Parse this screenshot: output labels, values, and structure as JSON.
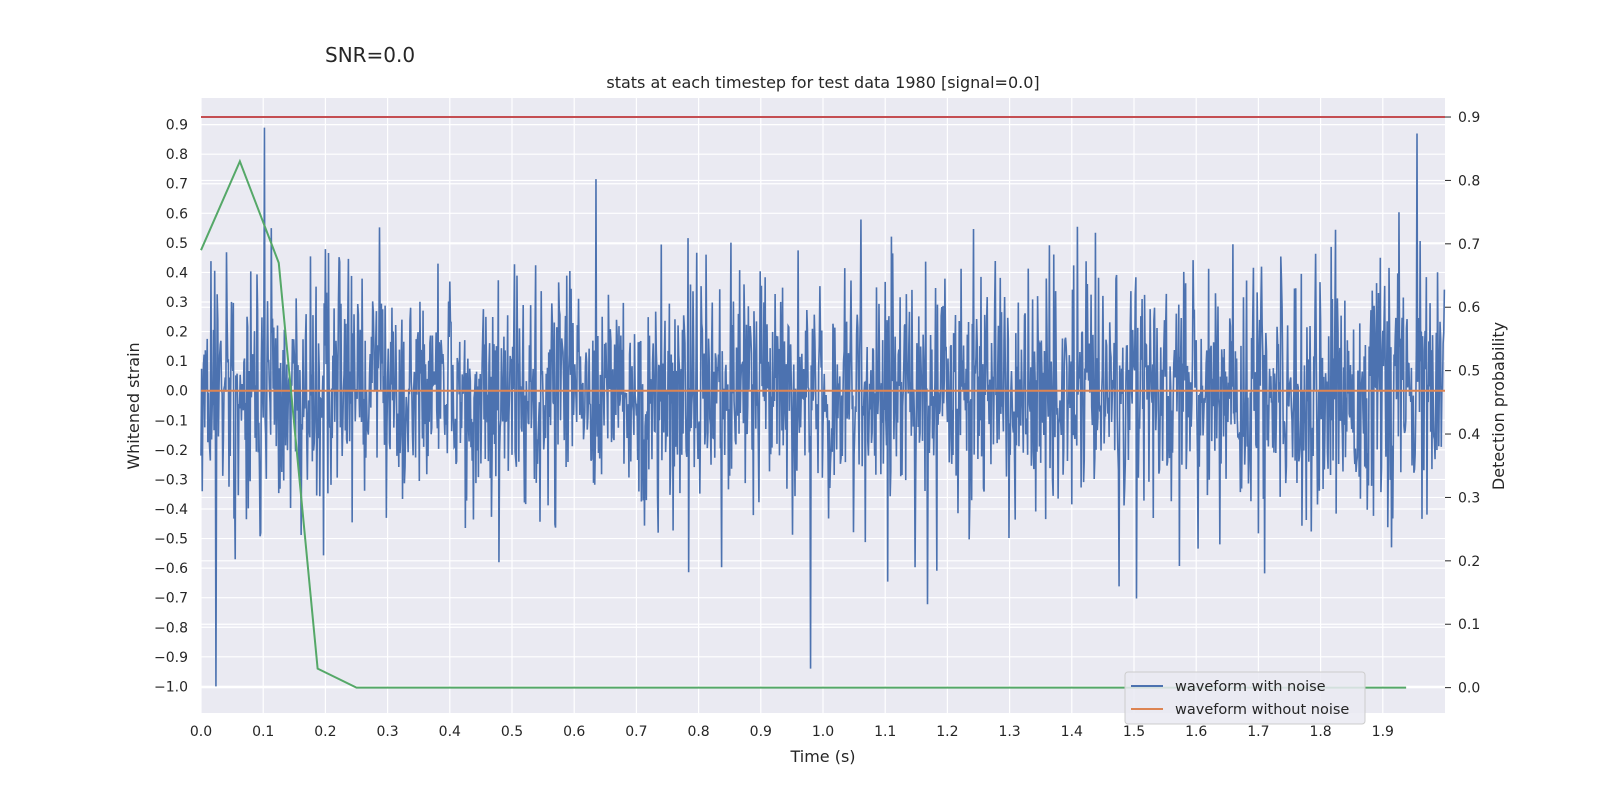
{
  "chart_data": {
    "type": "line",
    "suptitle": "SNR=0.0",
    "title": "stats at each timestep for test data 1980 [signal=0.0]",
    "xlabel": "Time (s)",
    "ylabel_left": "Whitened strain",
    "ylabel_right": "Detection probability",
    "xlim": [
      0.0,
      2.0
    ],
    "ylim_left": [
      -1.09,
      0.99
    ],
    "ylim_right": [
      -0.04,
      0.93
    ],
    "x_ticks": [
      "0.0",
      "0.1",
      "0.2",
      "0.3",
      "0.4",
      "0.5",
      "0.6",
      "0.7",
      "0.8",
      "0.9",
      "1.0",
      "1.1",
      "1.2",
      "1.3",
      "1.4",
      "1.5",
      "1.6",
      "1.7",
      "1.8",
      "1.9"
    ],
    "y_left_ticks": [
      "0.9",
      "0.8",
      "0.7",
      "0.6",
      "0.5",
      "0.4",
      "0.3",
      "0.2",
      "0.1",
      "0.0",
      "−0.1",
      "−0.2",
      "−0.3",
      "−0.4",
      "−0.5",
      "−0.6",
      "−0.7",
      "−0.8",
      "−0.9",
      "−1.0"
    ],
    "y_right_ticks": [
      "0.9",
      "0.8",
      "0.7",
      "0.6",
      "0.5",
      "0.4",
      "0.3",
      "0.2",
      "0.1",
      "0.0"
    ],
    "threshold": {
      "value": 0.9,
      "axis": "right",
      "color": "#c44e52"
    },
    "series": [
      {
        "name": "waveform with noise",
        "axis": "left",
        "color": "#4c72b0",
        "description": "noisy whitened strain, dense samples, amplitude roughly within -1.0 to 0.9",
        "peak_values": [
          {
            "x": 0.024,
            "y": -1.0
          },
          {
            "x": 0.102,
            "y": 0.89
          },
          {
            "x": 0.98,
            "y": -0.94
          },
          {
            "x": 1.955,
            "y": 0.87
          }
        ]
      },
      {
        "name": "waveform without noise",
        "axis": "left",
        "color": "#dd8452",
        "x": [
          0.0,
          2.0
        ],
        "y": [
          0.0,
          0.0
        ]
      },
      {
        "name": "detection probability",
        "axis": "right",
        "color": "#55a868",
        "x": [
          0.0,
          0.0625,
          0.125,
          0.1875,
          0.25,
          0.3125,
          0.5,
          1.0,
          1.5,
          1.9375
        ],
        "y": [
          0.69,
          0.83,
          0.67,
          0.03,
          0.0,
          0.0,
          0.0,
          0.0,
          0.0,
          0.0
        ]
      }
    ],
    "legend": {
      "position": "lower-right",
      "entries": [
        {
          "label": "waveform with noise",
          "color": "#4c72b0"
        },
        {
          "label": "waveform without noise",
          "color": "#dd8452"
        }
      ]
    }
  }
}
